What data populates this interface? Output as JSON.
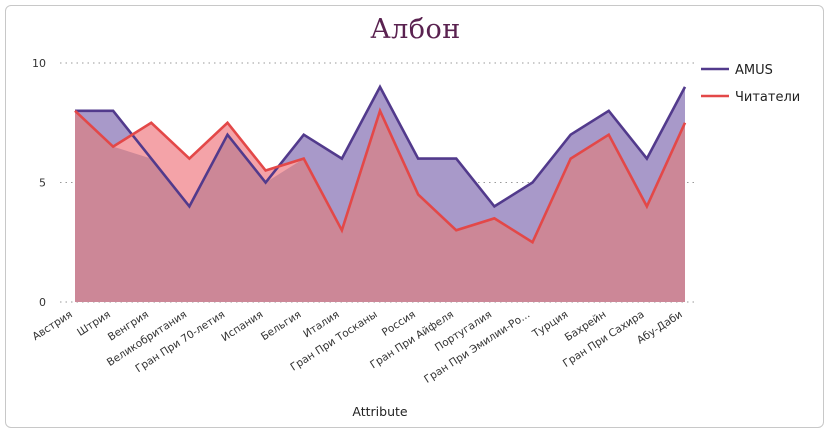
{
  "chart_data": {
    "type": "area",
    "title": "Албон",
    "xlabel": "Attribute",
    "ylabel": "",
    "ylim": [
      0,
      10
    ],
    "yticks": [
      0,
      5,
      10
    ],
    "grid": "horizontal-dotted",
    "legend_position": "right",
    "categories": [
      "Австрия",
      "Штрия",
      "Венгрия",
      "Великобритания",
      "Гран При 70-летия",
      "Испания",
      "Бельгия",
      "Италия",
      "Гран При Тосканы",
      "Россия",
      "Гран При Айфеля",
      "Португалия",
      "Гран При Эмилии-Ро...",
      "Турция",
      "Бахрейн",
      "Гран При Сахира",
      "Абу-Даби"
    ],
    "series": [
      {
        "name": "AMUS",
        "color": "#523a8c",
        "fill": "#a899c9",
        "values": [
          8,
          8,
          6,
          4,
          7,
          5,
          7,
          6,
          9,
          6,
          6,
          4,
          5,
          7,
          8,
          6,
          9
        ]
      },
      {
        "name": "Читатели",
        "color": "#e34848",
        "fill": "#f4a3a8",
        "values": [
          8,
          6.5,
          7.5,
          6,
          7.5,
          5.5,
          6,
          3,
          8,
          4.5,
          3,
          3.5,
          2.5,
          6,
          7,
          4,
          7.5
        ]
      }
    ],
    "overlap_fill": "#cc8797"
  }
}
